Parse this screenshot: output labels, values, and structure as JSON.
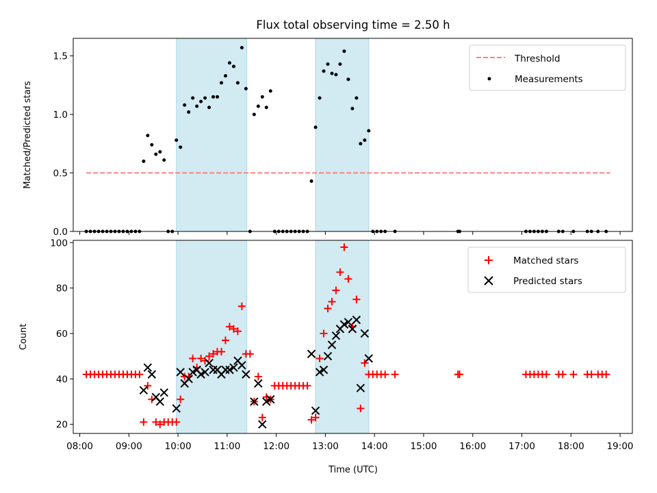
{
  "title": "Flux total observing time = 2.50 h",
  "colors": {
    "threshold": "#ff7f7f",
    "measurements": "#000000",
    "matched": "#ff0000",
    "predicted": "#000000",
    "shade": "#add8e6"
  },
  "chart_data": [
    {
      "type": "scatter",
      "ylabel": "Matched/Predicted stars",
      "xlim": [
        "07:52",
        "19:15"
      ],
      "ylim": [
        0,
        1.65
      ],
      "yticks": [
        0.0,
        0.5,
        1.0,
        1.5
      ],
      "ytick_labels": [
        "0.0",
        "0.5",
        "1.0",
        "1.5"
      ],
      "xticks": [
        "08:00",
        "09:00",
        "10:00",
        "11:00",
        "12:00",
        "13:00",
        "14:00",
        "15:00",
        "16:00",
        "17:00",
        "18:00",
        "19:00"
      ],
      "legend_position": "upper right",
      "legend": [
        {
          "label": "Threshold",
          "kind": "dashed-line"
        },
        {
          "label": "Measurements",
          "kind": "dot"
        }
      ],
      "shaded_intervals": [
        [
          "09:58",
          "11:24"
        ],
        [
          "12:48",
          "13:53"
        ]
      ],
      "threshold": {
        "value": 0.5,
        "x_range": [
          "08:08",
          "18:48"
        ]
      },
      "series": [
        {
          "name": "Measurements",
          "points": [
            [
              "08:08",
              0
            ],
            [
              "08:13",
              0
            ],
            [
              "08:18",
              0
            ],
            [
              "08:23",
              0
            ],
            [
              "08:28",
              0
            ],
            [
              "08:33",
              0
            ],
            [
              "08:38",
              0
            ],
            [
              "08:43",
              0
            ],
            [
              "08:48",
              0
            ],
            [
              "08:53",
              0
            ],
            [
              "08:58",
              0
            ],
            [
              "09:03",
              0
            ],
            [
              "09:08",
              0
            ],
            [
              "09:13",
              0
            ],
            [
              "09:18",
              0.6
            ],
            [
              "09:23",
              0.82
            ],
            [
              "09:28",
              0.74
            ],
            [
              "09:33",
              0.66
            ],
            [
              "09:38",
              0.68
            ],
            [
              "09:43",
              0.61
            ],
            [
              "09:48",
              0
            ],
            [
              "09:53",
              0
            ],
            [
              "09:58",
              0.78
            ],
            [
              "10:03",
              0.72
            ],
            [
              "10:08",
              1.08
            ],
            [
              "10:13",
              1.02
            ],
            [
              "10:18",
              1.14
            ],
            [
              "10:23",
              1.07
            ],
            [
              "10:28",
              1.11
            ],
            [
              "10:33",
              1.14
            ],
            [
              "10:38",
              1.06
            ],
            [
              "10:43",
              1.15
            ],
            [
              "10:48",
              1.15
            ],
            [
              "10:53",
              1.27
            ],
            [
              "10:58",
              1.33
            ],
            [
              "11:03",
              1.44
            ],
            [
              "11:08",
              1.41
            ],
            [
              "11:13",
              1.27
            ],
            [
              "11:18",
              1.57
            ],
            [
              "11:23",
              1.22
            ],
            [
              "11:28",
              0
            ],
            [
              "11:33",
              1.0
            ],
            [
              "11:38",
              1.07
            ],
            [
              "11:43",
              1.15
            ],
            [
              "11:48",
              1.06
            ],
            [
              "11:53",
              1.2
            ],
            [
              "11:58",
              0
            ],
            [
              "12:03",
              0
            ],
            [
              "12:08",
              0
            ],
            [
              "12:13",
              0
            ],
            [
              "12:18",
              0
            ],
            [
              "12:23",
              0
            ],
            [
              "12:28",
              0
            ],
            [
              "12:33",
              0
            ],
            [
              "12:38",
              0
            ],
            [
              "12:43",
              0.43
            ],
            [
              "12:48",
              0.89
            ],
            [
              "12:53",
              1.14
            ],
            [
              "12:58",
              1.37
            ],
            [
              "13:03",
              1.43
            ],
            [
              "13:08",
              1.35
            ],
            [
              "13:13",
              1.34
            ],
            [
              "13:18",
              1.43
            ],
            [
              "13:23",
              1.54
            ],
            [
              "13:28",
              1.3
            ],
            [
              "13:33",
              1.05
            ],
            [
              "13:38",
              1.14
            ],
            [
              "13:43",
              0.75
            ],
            [
              "13:48",
              0.78
            ],
            [
              "13:53",
              0.86
            ],
            [
              "13:58",
              0
            ],
            [
              "14:03",
              0
            ],
            [
              "14:08",
              0
            ],
            [
              "14:13",
              0
            ],
            [
              "14:25",
              0
            ],
            [
              "15:42",
              0
            ],
            [
              "15:44",
              0
            ],
            [
              "17:05",
              0
            ],
            [
              "17:10",
              0
            ],
            [
              "17:15",
              0
            ],
            [
              "17:20",
              0
            ],
            [
              "17:25",
              0
            ],
            [
              "17:30",
              0
            ],
            [
              "17:45",
              0
            ],
            [
              "17:50",
              0
            ],
            [
              "18:03",
              0
            ],
            [
              "18:20",
              0
            ],
            [
              "18:25",
              0
            ],
            [
              "18:33",
              0
            ],
            [
              "18:43",
              0
            ]
          ]
        }
      ]
    },
    {
      "type": "scatter",
      "xlabel": "Time (UTC)",
      "ylabel": "Count",
      "xlim": [
        "07:52",
        "19:15"
      ],
      "ylim": [
        16,
        101
      ],
      "yticks": [
        20,
        40,
        60,
        80,
        100
      ],
      "ytick_labels": [
        "20",
        "40",
        "60",
        "80",
        "100"
      ],
      "xticks": [
        "08:00",
        "09:00",
        "10:00",
        "11:00",
        "12:00",
        "13:00",
        "14:00",
        "15:00",
        "16:00",
        "17:00",
        "18:00",
        "19:00"
      ],
      "xtick_labels": [
        "08:00",
        "09:00",
        "10:00",
        "11:00",
        "12:00",
        "13:00",
        "14:00",
        "15:00",
        "16:00",
        "17:00",
        "18:00",
        "19:00"
      ],
      "legend_position": "upper right",
      "legend": [
        {
          "label": "Matched stars",
          "kind": "plus"
        },
        {
          "label": "Predicted stars",
          "kind": "cross"
        }
      ],
      "shaded_intervals": [
        [
          "09:58",
          "11:24"
        ],
        [
          "12:48",
          "13:53"
        ]
      ],
      "series": [
        {
          "name": "Matched stars",
          "points": [
            [
              "08:08",
              42
            ],
            [
              "08:13",
              42
            ],
            [
              "08:18",
              42
            ],
            [
              "08:23",
              42
            ],
            [
              "08:28",
              42
            ],
            [
              "08:33",
              42
            ],
            [
              "08:38",
              42
            ],
            [
              "08:43",
              42
            ],
            [
              "08:48",
              42
            ],
            [
              "08:53",
              42
            ],
            [
              "08:58",
              42
            ],
            [
              "09:03",
              42
            ],
            [
              "09:08",
              42
            ],
            [
              "09:13",
              42
            ],
            [
              "09:18",
              21
            ],
            [
              "09:23",
              37
            ],
            [
              "09:28",
              31
            ],
            [
              "09:33",
              21
            ],
            [
              "09:38",
              20
            ],
            [
              "09:43",
              21
            ],
            [
              "09:48",
              21
            ],
            [
              "09:53",
              21
            ],
            [
              "09:58",
              21
            ],
            [
              "10:03",
              31
            ],
            [
              "10:08",
              41
            ],
            [
              "10:13",
              41
            ],
            [
              "10:18",
              49
            ],
            [
              "10:23",
              45
            ],
            [
              "10:28",
              49
            ],
            [
              "10:33",
              48
            ],
            [
              "10:38",
              50
            ],
            [
              "10:43",
              51
            ],
            [
              "10:48",
              52
            ],
            [
              "10:53",
              52
            ],
            [
              "10:58",
              57
            ],
            [
              "11:03",
              63
            ],
            [
              "11:08",
              62
            ],
            [
              "11:13",
              61
            ],
            [
              "11:18",
              72
            ],
            [
              "11:23",
              51
            ],
            [
              "11:28",
              51
            ],
            [
              "11:33",
              30
            ],
            [
              "11:38",
              41
            ],
            [
              "11:43",
              23
            ],
            [
              "11:48",
              32
            ],
            [
              "11:53",
              31
            ],
            [
              "11:58",
              37
            ],
            [
              "12:03",
              37
            ],
            [
              "12:08",
              37
            ],
            [
              "12:13",
              37
            ],
            [
              "12:18",
              37
            ],
            [
              "12:23",
              37
            ],
            [
              "12:28",
              37
            ],
            [
              "12:33",
              37
            ],
            [
              "12:38",
              37
            ],
            [
              "12:43",
              22
            ],
            [
              "12:48",
              23
            ],
            [
              "12:53",
              49
            ],
            [
              "12:58",
              60
            ],
            [
              "13:03",
              71
            ],
            [
              "13:08",
              74
            ],
            [
              "13:13",
              79
            ],
            [
              "13:18",
              87
            ],
            [
              "13:23",
              98
            ],
            [
              "13:28",
              84
            ],
            [
              "13:33",
              63
            ],
            [
              "13:38",
              75
            ],
            [
              "13:43",
              27
            ],
            [
              "13:48",
              47
            ],
            [
              "13:53",
              42
            ],
            [
              "13:58",
              42
            ],
            [
              "14:03",
              42
            ],
            [
              "14:08",
              42
            ],
            [
              "14:13",
              42
            ],
            [
              "14:25",
              42
            ],
            [
              "15:42",
              42
            ],
            [
              "15:44",
              42
            ],
            [
              "17:05",
              42
            ],
            [
              "17:10",
              42
            ],
            [
              "17:15",
              42
            ],
            [
              "17:20",
              42
            ],
            [
              "17:25",
              42
            ],
            [
              "17:30",
              42
            ],
            [
              "17:45",
              42
            ],
            [
              "17:50",
              42
            ],
            [
              "18:03",
              42
            ],
            [
              "18:20",
              42
            ],
            [
              "18:25",
              42
            ],
            [
              "18:33",
              42
            ],
            [
              "18:38",
              42
            ],
            [
              "18:43",
              42
            ]
          ]
        },
        {
          "name": "Predicted stars",
          "points": [
            [
              "09:18",
              35
            ],
            [
              "09:23",
              45
            ],
            [
              "09:28",
              42
            ],
            [
              "09:33",
              32
            ],
            [
              "09:38",
              30
            ],
            [
              "09:43",
              34
            ],
            [
              "09:58",
              27
            ],
            [
              "10:03",
              43
            ],
            [
              "10:08",
              38
            ],
            [
              "10:13",
              40
            ],
            [
              "10:18",
              43
            ],
            [
              "10:23",
              44
            ],
            [
              "10:28",
              42
            ],
            [
              "10:33",
              43
            ],
            [
              "10:38",
              47
            ],
            [
              "10:43",
              44
            ],
            [
              "10:48",
              44
            ],
            [
              "10:53",
              42
            ],
            [
              "10:58",
              44
            ],
            [
              "11:03",
              44
            ],
            [
              "11:08",
              45
            ],
            [
              "11:13",
              48
            ],
            [
              "11:18",
              46
            ],
            [
              "11:23",
              42
            ],
            [
              "11:33",
              30
            ],
            [
              "11:38",
              38
            ],
            [
              "11:43",
              20
            ],
            [
              "11:48",
              30
            ],
            [
              "11:53",
              31
            ],
            [
              "12:43",
              51
            ],
            [
              "12:48",
              26
            ],
            [
              "12:53",
              43
            ],
            [
              "12:58",
              44
            ],
            [
              "13:03",
              50
            ],
            [
              "13:08",
              55
            ],
            [
              "13:13",
              59
            ],
            [
              "13:18",
              62
            ],
            [
              "13:23",
              64
            ],
            [
              "13:28",
              65
            ],
            [
              "13:33",
              62
            ],
            [
              "13:38",
              66
            ],
            [
              "13:43",
              36
            ],
            [
              "13:48",
              60
            ],
            [
              "13:53",
              49
            ]
          ]
        }
      ]
    }
  ]
}
